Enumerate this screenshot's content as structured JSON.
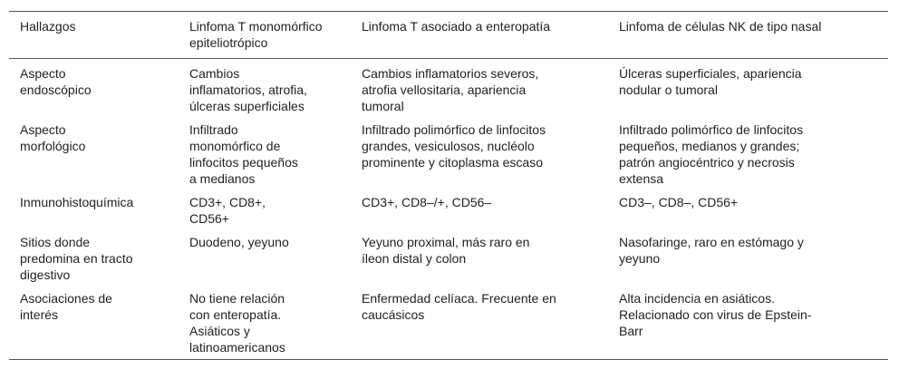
{
  "headers": [
    "Hallazgos",
    "Linfoma T monomórfico\nepiteliotrópico",
    "Linfoma T asociado a enteropatía",
    "Linfoma de células NK de tipo nasal"
  ],
  "rows": [
    [
      "Aspecto\nendoscópico",
      "Cambios\ninflamatorios, atrofia,\núlceras superficiales",
      "Cambios inflamatorios severos,\natrofia vellositaria, apariencia\ntumoral",
      "Úlceras superficiales, apariencia\nnodular o tumoral"
    ],
    [
      "Aspecto\nmorfológico",
      "Infiltrado\nmonomórfico de\nlinfocitos pequeños\na medianos",
      "Infiltrado polimórfico de linfocitos\ngrandes, vesiculosos, nucléolo\nprominente y citoplasma escaso",
      "Infiltrado polimórfico de linfocitos\npequeños, medianos y grandes;\npatrón angiocéntrico y necrosis\nextensa"
    ],
    [
      "Inmunohistoquímica",
      "CD3+, CD8+,\nCD56+",
      "CD3+, CD8–/+, CD56–",
      "CD3–, CD8–, CD56+"
    ],
    [
      "Sitios donde\npredomina en tracto\ndigestivo",
      "Duodeno, yeyuno",
      "Yeyuno proximal, más raro en\níleon distal y colon",
      "Nasofaringe, raro en estómago y\nyeyuno"
    ],
    [
      "Asociaciones de\ninterés",
      "No tiene relación\ncon enteropatía.\nAsiáticos y\nlatinoamericanos",
      "Enfermedad celíaca. Frecuente en\ncaucásicos",
      "Alta incidencia en asiáticos.\nRelacionado con virus de Epstein-\nBarr"
    ]
  ]
}
